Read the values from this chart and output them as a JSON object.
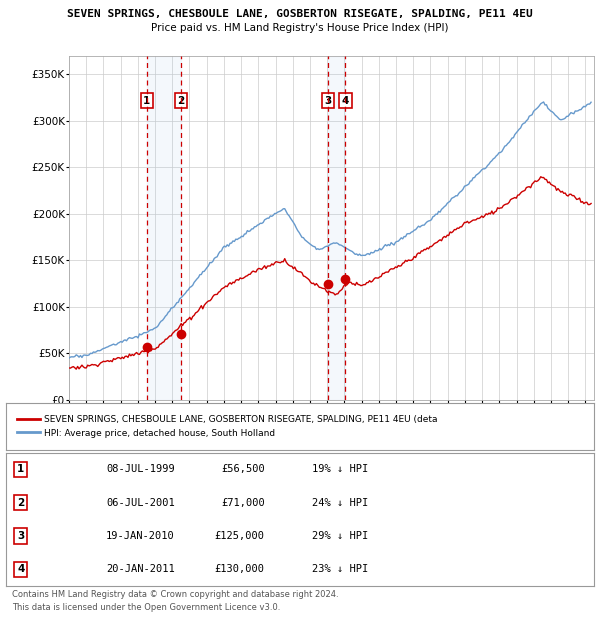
{
  "title": "SEVEN SPRINGS, CHESBOULE LANE, GOSBERTON RISEGATE, SPALDING, PE11 4EU",
  "subtitle": "Price paid vs. HM Land Registry's House Price Index (HPI)",
  "ylabel_ticks": [
    "£0",
    "£50K",
    "£100K",
    "£150K",
    "£200K",
    "£250K",
    "£300K",
    "£350K"
  ],
  "ylim": [
    0,
    370000
  ],
  "xlim_start": 1995.0,
  "xlim_end": 2025.5,
  "sale_markers": [
    {
      "num": 1,
      "date": "08-JUL-1999",
      "year_x": 1999.52,
      "price": 56500,
      "pct": "19% ↓ HPI"
    },
    {
      "num": 2,
      "date": "06-JUL-2001",
      "year_x": 2001.52,
      "price": 71000,
      "pct": "24% ↓ HPI"
    },
    {
      "num": 3,
      "date": "19-JAN-2010",
      "year_x": 2010.05,
      "price": 125000,
      "pct": "29% ↓ HPI"
    },
    {
      "num": 4,
      "date": "20-JAN-2011",
      "year_x": 2011.05,
      "price": 130000,
      "pct": "23% ↓ HPI"
    }
  ],
  "legend_property_label": "SEVEN SPRINGS, CHESBOULE LANE, GOSBERTON RISEGATE, SPALDING, PE11 4EU (deta",
  "legend_hpi_label": "HPI: Average price, detached house, South Holland",
  "footer_line1": "Contains HM Land Registry data © Crown copyright and database right 2024.",
  "footer_line2": "This data is licensed under the Open Government Licence v3.0.",
  "property_color": "#cc0000",
  "hpi_color": "#6699cc",
  "shade_color": "#ddeeff",
  "vline_color": "#cc0000",
  "marker_box_color": "#cc0000",
  "grid_color": "#cccccc",
  "bg_color": "#ffffff"
}
